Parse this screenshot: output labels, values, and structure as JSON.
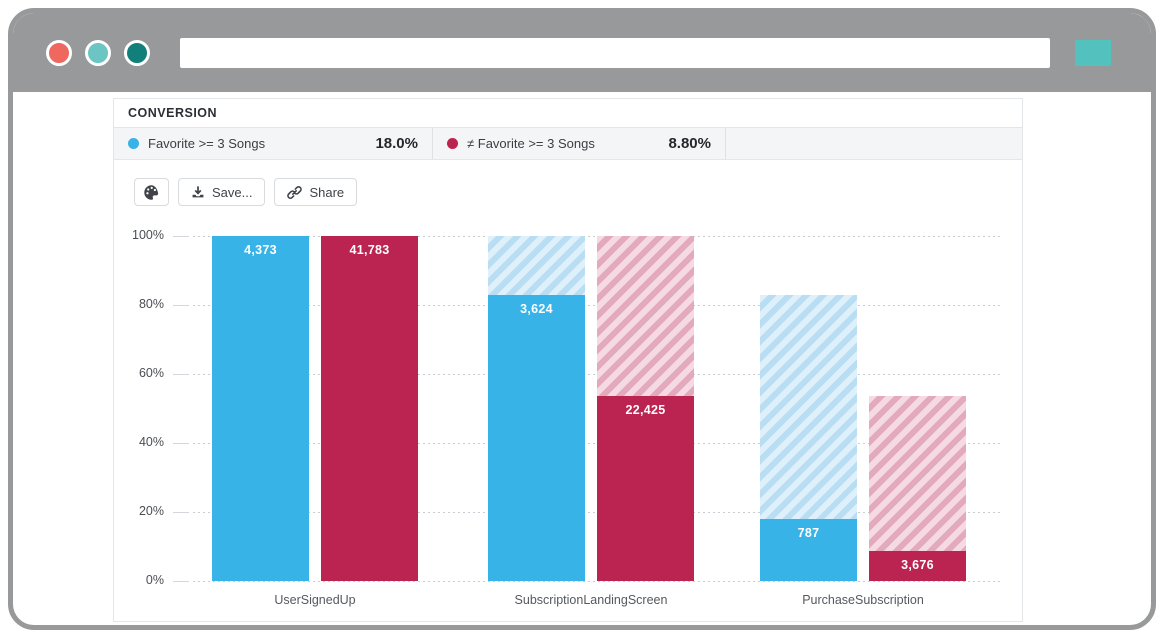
{
  "browser": {
    "window_controls": [
      {
        "name": "window-control-red",
        "color": "#ee685f"
      },
      {
        "name": "window-control-teal",
        "color": "#6ac5c3"
      },
      {
        "name": "window-control-dark-teal",
        "color": "#11807a"
      }
    ],
    "address_bar": {
      "value": "",
      "placeholder": ""
    },
    "action_button_color": "#53c2bf"
  },
  "panel": {
    "title": "CONVERSION",
    "legend": {
      "items": [
        {
          "label": "Favorite >= 3 Songs",
          "value": "18.0%",
          "color": "#38b3e8"
        },
        {
          "label": "≠ Favorite >= 3 Songs",
          "value": "8.80%",
          "color": "#bb2450"
        }
      ]
    },
    "toolbar": {
      "palette_icon": "palette-icon",
      "save_label": "Save...",
      "share_label": "Share"
    }
  },
  "chart_data": {
    "type": "bar",
    "subtype": "funnel-conversion",
    "title": "CONVERSION",
    "categories": [
      "UserSignedUp",
      "SubscriptionLandingScreen",
      "PurchaseSubscription"
    ],
    "series": [
      {
        "name": "Favorite >= 3 Songs",
        "color": "#38b3e8",
        "hatch_bg": "#def0fa",
        "hatch_stripe": "#b9def4",
        "counts": [
          4373,
          3624,
          787
        ],
        "count_labels": [
          "4,373",
          "3,624",
          "787"
        ],
        "percents": [
          100,
          82.9,
          18.0
        ],
        "overall_conversion": "18.0%"
      },
      {
        "name": "≠ Favorite >= 3 Songs",
        "color": "#bb2450",
        "hatch_bg": "#f5dae3",
        "hatch_stripe": "#e3a9bd",
        "counts": [
          41783,
          22425,
          3676
        ],
        "count_labels": [
          "41,783",
          "22,425",
          "3,676"
        ],
        "percents": [
          100,
          53.7,
          8.8
        ],
        "overall_conversion": "8.80%"
      }
    ],
    "ylabel_ticks": [
      "100%",
      "80%",
      "60%",
      "40%",
      "20%",
      "0%"
    ],
    "ylim": [
      0,
      100
    ],
    "grid": "horizontal-dotted",
    "note": "hatched segment of each bar shows drop-off from previous funnel step"
  }
}
